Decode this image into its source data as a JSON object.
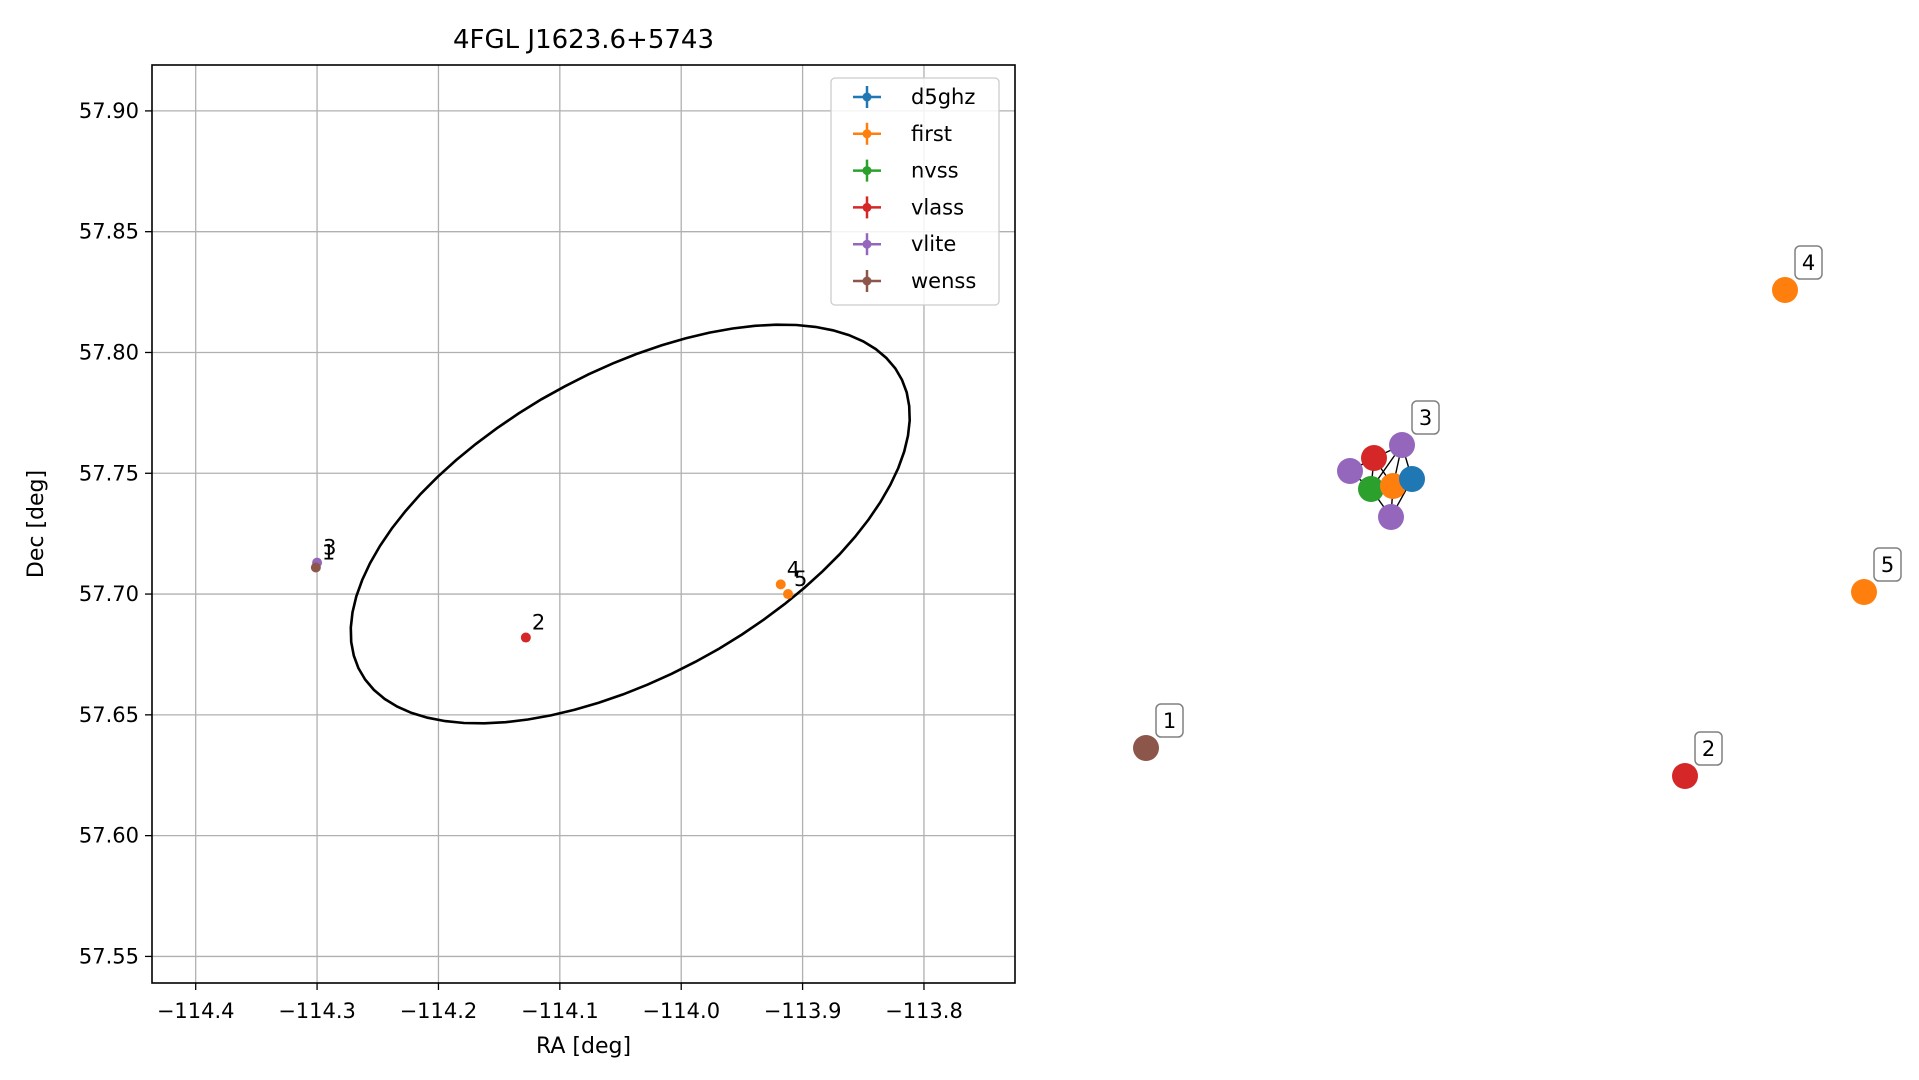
{
  "chart_data": [
    {
      "type": "scatter",
      "title": "4FGL J1623.6+5743",
      "xlabel": "RA [deg]",
      "ylabel": "Dec [deg]",
      "xlim": [
        -114.436,
        -113.725
      ],
      "ylim": [
        57.539,
        57.919
      ],
      "xticks": [
        -114.4,
        -114.3,
        -114.2,
        -114.1,
        -114.0,
        -113.9,
        -113.8
      ],
      "xtick_labels": [
        "−114.4",
        "−114.3",
        "−114.2",
        "−114.1",
        "−114.0",
        "−113.9",
        "−113.8"
      ],
      "yticks": [
        57.55,
        57.6,
        57.65,
        57.7,
        57.75,
        57.8,
        57.85,
        57.9
      ],
      "ytick_labels": [
        "57.55",
        "57.60",
        "57.65",
        "57.70",
        "57.75",
        "57.80",
        "57.85",
        "57.90"
      ],
      "grid": true,
      "legend_position": "top-right",
      "series": [
        {
          "name": "d5ghz",
          "color": "#1f77b4",
          "points": []
        },
        {
          "name": "first",
          "color": "#ff7f0e",
          "points": [
            {
              "x": -113.918,
              "y": 57.704,
              "label": "4"
            },
            {
              "x": -113.912,
              "y": 57.7,
              "label": "5"
            }
          ]
        },
        {
          "name": "nvss",
          "color": "#2ca02c",
          "points": []
        },
        {
          "name": "vlass",
          "color": "#d62728",
          "points": [
            {
              "x": -114.128,
              "y": 57.682,
              "label": "2"
            }
          ]
        },
        {
          "name": "vlite",
          "color": "#9467bd",
          "points": [
            {
              "x": -114.3,
              "y": 57.713,
              "label": "3"
            }
          ]
        },
        {
          "name": "wenss",
          "color": "#8c564b",
          "points": [
            {
              "x": -114.301,
              "y": 57.711,
              "label": "1"
            }
          ]
        }
      ],
      "ellipse": {
        "center": [
          -114.042,
          57.729
        ],
        "semi_major_deg": 0.235,
        "semi_minor_deg": 0.068,
        "angle_deg": 12
      }
    },
    {
      "type": "network",
      "nodes": [
        {
          "id": "c1",
          "color": "#8c564b",
          "label": "1"
        },
        {
          "id": "c2",
          "color": "#d62728",
          "label": "2"
        },
        {
          "id": "c4",
          "color": "#ff7f0e",
          "label": "4"
        },
        {
          "id": "c5",
          "color": "#ff7f0e",
          "label": "5"
        },
        {
          "id": "k1",
          "color": "#9467bd",
          "label": "3"
        },
        {
          "id": "k2",
          "color": "#9467bd",
          "label": ""
        },
        {
          "id": "k3",
          "color": "#d62728",
          "label": ""
        },
        {
          "id": "k4",
          "color": "#2ca02c",
          "label": ""
        },
        {
          "id": "k5",
          "color": "#ff7f0e",
          "label": ""
        },
        {
          "id": "k6",
          "color": "#1f77b4",
          "label": ""
        },
        {
          "id": "k7",
          "color": "#9467bd",
          "label": ""
        }
      ],
      "edges": [
        [
          "k1",
          "k3"
        ],
        [
          "k1",
          "k5"
        ],
        [
          "k1",
          "k6"
        ],
        [
          "k1",
          "k4"
        ],
        [
          "k3",
          "k4"
        ],
        [
          "k3",
          "k5"
        ],
        [
          "k4",
          "k5"
        ],
        [
          "k5",
          "k6"
        ],
        [
          "k7",
          "k4"
        ],
        [
          "k7",
          "k5"
        ],
        [
          "k7",
          "k6"
        ],
        [
          "k2",
          "k3"
        ],
        [
          "k2",
          "k4"
        ]
      ]
    }
  ]
}
